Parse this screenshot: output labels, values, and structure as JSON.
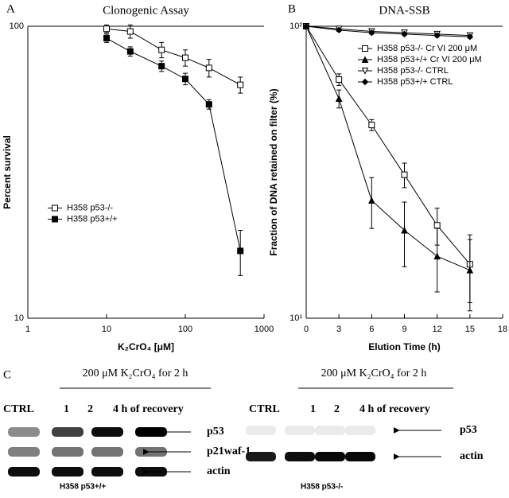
{
  "chart_data": [
    {
      "type": "line",
      "panel_label": "A",
      "title": "Clonogenic Assay",
      "x_label": "K₂CrO₄ [μM]",
      "y_label": "Percent survival",
      "x": [
        10,
        20,
        50,
        100,
        200,
        500
      ],
      "xlog": true,
      "ylog": true,
      "xlim": [
        1,
        1000
      ],
      "xticks": [
        1,
        10,
        100,
        1000
      ],
      "ylim": [
        10,
        100
      ],
      "yticks": [
        10,
        100
      ],
      "legend": "center left",
      "series": [
        {
          "name": "H358 p53-/-",
          "color": "#000000",
          "marker": "square-open",
          "values": [
            98,
            96,
            83,
            78,
            72,
            63
          ],
          "errors": [
            3,
            5,
            5,
            5,
            5,
            4
          ]
        },
        {
          "name": "H358 p53+/+",
          "color": "#000000",
          "marker": "square-filled",
          "values": [
            91,
            82,
            73,
            66,
            54,
            17
          ],
          "errors": [
            3,
            3,
            3,
            3,
            2,
            3
          ]
        }
      ]
    },
    {
      "type": "line",
      "panel_label": "B",
      "title": "DNA-SSB",
      "x_label": "Elution Time (h)",
      "y_label": "Fraction of DNA retained on filter (%)",
      "x": [
        0,
        3,
        6,
        9,
        12,
        15
      ],
      "xlog": false,
      "ylog": true,
      "xlim": [
        0,
        18
      ],
      "xticks": [
        0,
        3,
        6,
        9,
        12,
        15,
        18
      ],
      "ylim": [
        10,
        100
      ],
      "yticks": [
        {
          "value": 10,
          "label": "10¹"
        },
        {
          "value": 100,
          "label": "10²"
        }
      ],
      "legend": "upper right",
      "series": [
        {
          "name": "H358 p53-/- Cr VI 200 μM",
          "color": "#000000",
          "marker": "square-open",
          "values": [
            100,
            65.7,
            45.9,
            31,
            20.8,
            15.3
          ],
          "errors": [
            0,
            3,
            2,
            3,
            3,
            4
          ]
        },
        {
          "name": "H358 p53+/+ Cr VI 200 μM",
          "color": "#000000",
          "marker": "triangle-filled",
          "values": [
            100,
            56.5,
            25.3,
            20,
            16.3,
            14.6
          ],
          "errors": [
            0,
            4,
            5,
            5,
            4,
            4
          ]
        },
        {
          "name": "H358 p53-/- CTRL",
          "color": "#000000",
          "marker": "triangle-down-open",
          "values": [
            100,
            98,
            96,
            95,
            94,
            93
          ],
          "errors": [
            0,
            1,
            1,
            1,
            1,
            1
          ]
        },
        {
          "name": "H358 p53+/+ CTRL",
          "color": "#000000",
          "marker": "diamond-filled",
          "values": [
            100,
            97,
            95,
            94,
            93,
            92
          ],
          "errors": [
            0,
            1,
            1,
            1,
            1,
            1
          ]
        }
      ]
    }
  ],
  "blot_panel": {
    "panel_label": "C",
    "blots": [
      {
        "treatment": "200 μM K₂CrO₄ for 2 h",
        "lanes": [
          "CTRL",
          "1",
          "2",
          "4 h of recovery"
        ],
        "rows": [
          "p53",
          "p21waf-1",
          "actin"
        ],
        "cell_line": "H358 p53+/+"
      },
      {
        "treatment": "200 μM K₂CrO₄ for 2 h",
        "lanes": [
          "CTRL",
          "1",
          "2",
          "4 h of recovery"
        ],
        "rows": [
          "p53",
          "actin"
        ],
        "cell_line": "H358 p53-/-"
      }
    ]
  }
}
